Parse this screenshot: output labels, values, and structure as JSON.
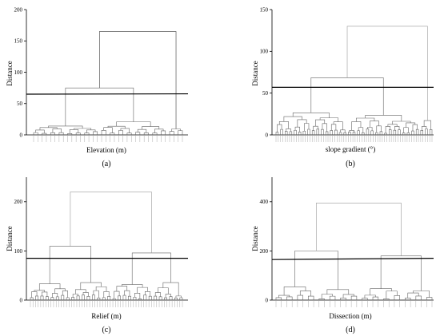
{
  "chart_data": [
    {
      "type": "dendrogram",
      "panel_label": "(a)",
      "xlabel": "Elevation (m)",
      "ylabel": "Distance",
      "ylim": [
        0,
        200
      ],
      "yticks": [
        0,
        50,
        100,
        150,
        200
      ],
      "cut_distance": 65,
      "root_distance": 165,
      "leaf_count": 36
    },
    {
      "type": "dendrogram",
      "panel_label": "(b)",
      "xlabel": "slope gradient (°)",
      "ylabel": "Distance",
      "ylim": [
        0,
        150
      ],
      "yticks": [
        0,
        50,
        100,
        150
      ],
      "cut_distance": 57,
      "root_distance": 130,
      "leaf_count": 70
    },
    {
      "type": "dendrogram",
      "panel_label": "(c)",
      "xlabel": "Relief (m)",
      "ylabel": "Distance",
      "ylim": [
        0,
        250
      ],
      "yticks": [
        0,
        100,
        200
      ],
      "cut_distance": 85,
      "root_distance": 220,
      "leaf_count": 60
    },
    {
      "type": "dendrogram",
      "panel_label": "(d)",
      "xlabel": "Dissection (m)",
      "ylabel": "Distance",
      "ylim": [
        0,
        500
      ],
      "yticks": [
        0,
        200,
        400
      ],
      "cut_distance": 165,
      "root_distance": 395,
      "leaf_count": 30
    }
  ]
}
